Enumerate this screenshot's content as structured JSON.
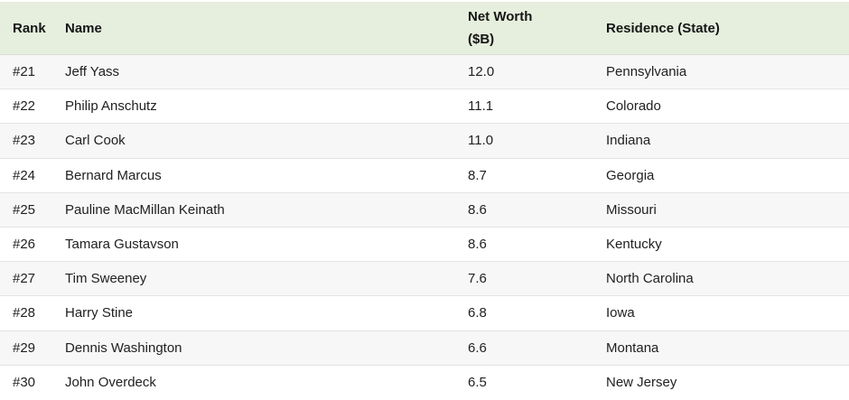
{
  "table": {
    "columns": [
      {
        "label": "Rank"
      },
      {
        "label": "Name"
      },
      {
        "label": "Net Worth ($B)"
      },
      {
        "label": "Residence (State)"
      }
    ],
    "rows": [
      {
        "rank": "#21",
        "name": "Jeff Yass",
        "net_worth": "12.0",
        "residence": "Pennsylvania"
      },
      {
        "rank": "#22",
        "name": "Philip Anschutz",
        "net_worth": "11.1",
        "residence": "Colorado"
      },
      {
        "rank": "#23",
        "name": "Carl Cook",
        "net_worth": "11.0",
        "residence": "Indiana"
      },
      {
        "rank": "#24",
        "name": "Bernard Marcus",
        "net_worth": "8.7",
        "residence": "Georgia"
      },
      {
        "rank": "#25",
        "name": "Pauline MacMillan Keinath",
        "net_worth": "8.6",
        "residence": "Missouri"
      },
      {
        "rank": "#26",
        "name": "Tamara Gustavson",
        "net_worth": "8.6",
        "residence": "Kentucky"
      },
      {
        "rank": "#27",
        "name": "Tim Sweeney",
        "net_worth": "7.6",
        "residence": "North Carolina"
      },
      {
        "rank": "#28",
        "name": "Harry Stine",
        "net_worth": "6.8",
        "residence": "Iowa"
      },
      {
        "rank": "#29",
        "name": "Dennis Washington",
        "net_worth": "6.6",
        "residence": "Montana"
      },
      {
        "rank": "#30",
        "name": "John Overdeck",
        "net_worth": "6.5",
        "residence": "New Jersey"
      }
    ]
  },
  "colors": {
    "header_background": "#e6eedd",
    "alt_row_background": "#f7f7f7",
    "row_border": "#e3e3e3",
    "text": "#212121"
  }
}
